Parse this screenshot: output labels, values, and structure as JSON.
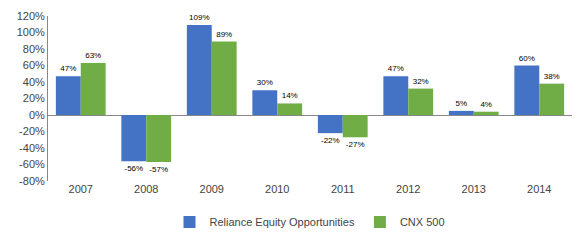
{
  "chart_data": {
    "type": "bar",
    "categories": [
      "2007",
      "2008",
      "2009",
      "2010",
      "2011",
      "2012",
      "2013",
      "2014"
    ],
    "series": [
      {
        "name": "Reliance Equity Opportunities",
        "color": "#4472C4",
        "values": [
          47,
          -56,
          109,
          30,
          -22,
          47,
          5,
          60
        ],
        "value_labels": [
          "47%",
          "-56%",
          "109%",
          "30%",
          "-22%",
          "47%",
          "5%",
          "60%"
        ]
      },
      {
        "name": "CNX 500",
        "color": "#70AD47",
        "values": [
          63,
          -57,
          89,
          14,
          -27,
          32,
          4,
          38
        ],
        "value_labels": [
          "63%",
          "-57%",
          "89%",
          "14%",
          "-27%",
          "32%",
          "4%",
          "38%"
        ]
      }
    ],
    "ylim": [
      -80,
      120
    ],
    "yticks": [
      {
        "value": -80,
        "label": "-80%"
      },
      {
        "value": -60,
        "label": "-60%"
      },
      {
        "value": -40,
        "label": "-40%"
      },
      {
        "value": -20,
        "label": "-20%"
      },
      {
        "value": 0,
        "label": "0%"
      },
      {
        "value": 20,
        "label": "20%"
      },
      {
        "value": 40,
        "label": "40%"
      },
      {
        "value": 60,
        "label": "60%"
      },
      {
        "value": 80,
        "label": "80%"
      },
      {
        "value": 100,
        "label": "100%"
      },
      {
        "value": 120,
        "label": "120%"
      }
    ],
    "grid": false,
    "legend": "bottom",
    "data_labels": true
  }
}
